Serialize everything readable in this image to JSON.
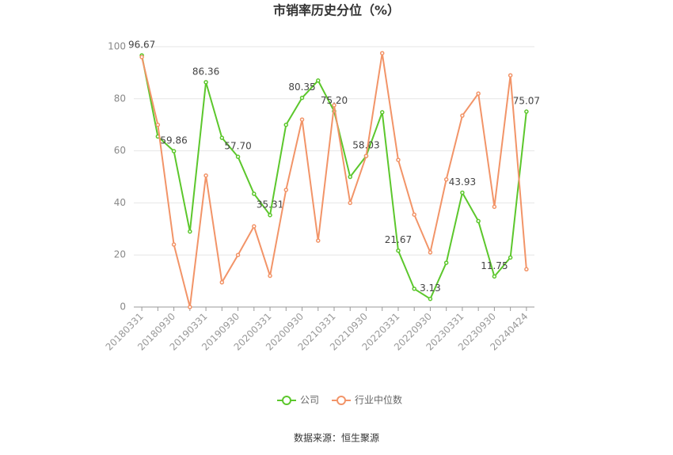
{
  "chart_data": {
    "type": "line",
    "title": "市销率历史分位（%）",
    "categories": [
      "20180331",
      null,
      "20180930",
      null,
      "20190331",
      null,
      "20190930",
      null,
      "20200331",
      null,
      "20200930",
      null,
      "20210331",
      null,
      "20210930",
      null,
      "20220331",
      null,
      "20220930",
      null,
      "20230331",
      null,
      "20230930",
      null,
      "20240424"
    ],
    "series": [
      {
        "name": "公司",
        "color": "#5cc72c",
        "values": [
          96.67,
          65.5,
          59.86,
          29,
          86.36,
          65,
          57.7,
          43.5,
          35.31,
          70,
          80.35,
          87,
          75.2,
          50,
          58.03,
          74.8,
          21.67,
          7,
          3.13,
          17,
          43.93,
          33,
          11.75,
          19,
          75.07
        ],
        "value_labels": [
          "96.67",
          null,
          "59.86",
          null,
          "86.36",
          null,
          "57.70",
          null,
          "35.31",
          null,
          "80.35",
          null,
          "75.20",
          null,
          "58.03",
          null,
          "21.67",
          null,
          "3.13",
          null,
          "43.93",
          null,
          "11.75",
          null,
          "75.07"
        ]
      },
      {
        "name": "行业中位数",
        "color": "#f29468",
        "values": [
          96,
          70,
          24,
          0,
          50.5,
          9.5,
          20,
          31,
          12,
          45,
          72,
          25.5,
          77.5,
          40,
          58,
          97.5,
          56.5,
          35.5,
          21,
          49,
          73.5,
          82,
          38.5,
          89,
          14.5
        ]
      }
    ],
    "ylim": [
      0,
      100
    ],
    "yticks": [
      0,
      20,
      40,
      60,
      80,
      100
    ],
    "grid": true,
    "source": "数据来源：恒生聚源"
  }
}
